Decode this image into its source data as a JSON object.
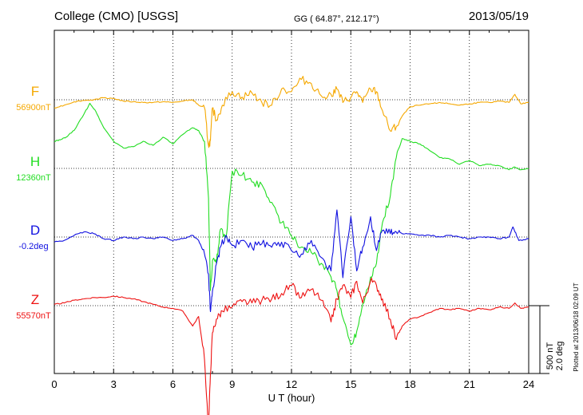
{
  "header": {
    "station": "College (CMO)  [USGS]",
    "coords": "GG ( 64.87°, 212.17°)",
    "date": "2013/05/19"
  },
  "footer": {
    "plotted": "Plotted at 2013/06/18 02:09 UT",
    "scale_nt": "500 nT",
    "scale_deg": "2.0 deg"
  },
  "chart_data": {
    "type": "line",
    "title": "College (CMO)  [USGS]",
    "xlabel": "U T (hour)",
    "ylabel": "",
    "xlim": [
      0,
      24
    ],
    "xticks": [
      "0",
      "3",
      "6",
      "9",
      "12",
      "15",
      "18",
      "21",
      "24"
    ],
    "grid": true,
    "series": [
      {
        "name": "F",
        "baseline": "56900nT",
        "color": "#f5a800",
        "x": [
          0,
          0.5,
          1,
          1.5,
          2,
          2.5,
          3,
          3.5,
          4,
          4.5,
          5,
          5.5,
          6,
          6.5,
          7,
          7.3,
          7.6,
          7.8,
          7.9,
          8.0,
          8.2,
          8.5,
          9,
          9.5,
          10,
          10.5,
          11,
          11.5,
          12,
          12.5,
          13,
          13.5,
          14,
          14.3,
          14.6,
          15,
          15.3,
          15.6,
          16,
          16.3,
          16.6,
          17,
          17.3,
          17.6,
          18,
          18.5,
          19,
          19.5,
          20,
          20.5,
          21,
          21.5,
          22,
          22.5,
          23,
          23.3,
          23.6,
          24
        ],
        "y": [
          -60,
          -40,
          -15,
          -5,
          0,
          15,
          10,
          -10,
          -15,
          -20,
          -20,
          -15,
          -20,
          -10,
          0,
          -40,
          -60,
          -340,
          -300,
          -60,
          -150,
          -40,
          60,
          20,
          50,
          -20,
          -40,
          80,
          60,
          150,
          120,
          30,
          40,
          80,
          -20,
          20,
          60,
          -20,
          80,
          60,
          -80,
          -230,
          -200,
          -120,
          -50,
          -40,
          -30,
          -20,
          -30,
          -40,
          -30,
          -20,
          -20,
          -10,
          -20,
          40,
          -30,
          -20
        ]
      },
      {
        "name": "H",
        "baseline": "12360nT",
        "color": "#22dd22",
        "x": [
          0,
          0.3,
          0.6,
          1,
          1.5,
          1.8,
          2.1,
          2.5,
          3,
          3.5,
          4,
          4.5,
          5,
          5.5,
          6,
          6.5,
          7,
          7.3,
          7.6,
          7.8,
          7.9,
          8.0,
          8.2,
          8.4,
          8.7,
          9,
          9.5,
          10,
          10.5,
          11,
          11.5,
          12,
          12.5,
          13,
          13.5,
          14,
          14.3,
          14.6,
          15,
          15.3,
          15.6,
          16,
          16.3,
          16.6,
          17,
          17.3,
          17.6,
          18,
          18.5,
          19,
          19.5,
          20,
          20.5,
          21,
          21.5,
          22,
          22.5,
          23,
          23.3,
          23.6,
          24
        ],
        "y": [
          200,
          210,
          230,
          280,
          400,
          480,
          420,
          300,
          200,
          150,
          160,
          200,
          170,
          230,
          180,
          250,
          300,
          280,
          200,
          -220,
          -900,
          -680,
          -700,
          -450,
          -500,
          -20,
          -50,
          -100,
          -120,
          -250,
          -400,
          -500,
          -580,
          -620,
          -700,
          -800,
          -900,
          -1100,
          -1300,
          -1200,
          -1000,
          -800,
          -700,
          -400,
          -200,
          80,
          220,
          200,
          180,
          130,
          80,
          70,
          30,
          60,
          20,
          30,
          20,
          -10,
          10,
          -10,
          0
        ]
      },
      {
        "name": "D",
        "baseline": "-0.2deg",
        "color": "#1010e0",
        "x": [
          0,
          0.5,
          1,
          1.5,
          2,
          2.5,
          3,
          3.5,
          4,
          4.5,
          5,
          5.5,
          6,
          6.5,
          7,
          7.3,
          7.6,
          7.8,
          7.9,
          8.0,
          8.2,
          8.4,
          8.7,
          9,
          9.5,
          10,
          10.5,
          11,
          11.5,
          12,
          12.5,
          13,
          13.5,
          14,
          14.3,
          14.6,
          15,
          15.3,
          15.6,
          16,
          16.3,
          16.6,
          17,
          17.3,
          17.6,
          18,
          18.5,
          19,
          19.5,
          20,
          20.5,
          21,
          21.5,
          22,
          22.5,
          23,
          23.2,
          23.5,
          24
        ],
        "y": [
          -0.15,
          -0.1,
          0.05,
          0.15,
          0.1,
          -0.05,
          -0.1,
          0,
          -0.05,
          0,
          -0.05,
          0,
          -0.1,
          -0.05,
          0.05,
          -0.1,
          -0.5,
          -1.1,
          -2.2,
          -1.6,
          -0.8,
          -0.3,
          0.05,
          -0.25,
          -0.1,
          -0.3,
          -0.2,
          -0.3,
          -0.15,
          -0.4,
          -0.5,
          -0.1,
          -0.6,
          -1.0,
          0.8,
          -1.2,
          0.6,
          -1.0,
          -0.3,
          0.6,
          -0.4,
          0.2,
          0.1,
          0.15,
          0.1,
          0.1,
          0.05,
          0.05,
          0.0,
          0.05,
          0.0,
          -0.05,
          0.0,
          0.0,
          -0.05,
          0.0,
          0.3,
          -0.1,
          -0.05
        ]
      },
      {
        "name": "Z",
        "baseline": "55570nT",
        "color": "#ee1111",
        "x": [
          0,
          0.5,
          1,
          1.5,
          2,
          2.5,
          3,
          3.5,
          4,
          4.5,
          5,
          5.5,
          6,
          6.5,
          7,
          7.3,
          7.6,
          7.8,
          7.9,
          8.0,
          8.2,
          8.5,
          9,
          9.5,
          10,
          10.5,
          11,
          11.5,
          12,
          12.5,
          13,
          13.5,
          14,
          14.3,
          14.6,
          15,
          15.3,
          15.6,
          16,
          16.3,
          16.6,
          17,
          17.3,
          17.6,
          18,
          18.5,
          19,
          19.5,
          20,
          20.5,
          21,
          21.5,
          22,
          22.5,
          23,
          23.3,
          23.6,
          24
        ],
        "y": [
          10,
          20,
          40,
          50,
          60,
          60,
          70,
          60,
          50,
          30,
          10,
          -10,
          -20,
          -40,
          -150,
          -80,
          -400,
          -900,
          -500,
          -200,
          -100,
          -40,
          -10,
          30,
          20,
          40,
          50,
          90,
          150,
          60,
          120,
          40,
          -120,
          50,
          150,
          60,
          180,
          20,
          180,
          150,
          50,
          -100,
          -250,
          -150,
          -100,
          -80,
          -50,
          -20,
          -30,
          -20,
          -40,
          -20,
          -30,
          -10,
          -20,
          20,
          -20,
          -10
        ]
      }
    ]
  }
}
